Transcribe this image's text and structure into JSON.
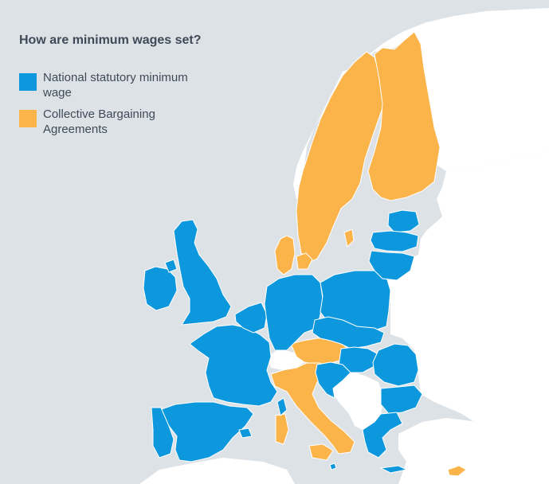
{
  "title": "How are minimum wages set?",
  "legend": [
    {
      "label": "National statutory minimum wage",
      "color": "#0d98dd"
    },
    {
      "label": "Collective Bargaining Agreements",
      "color": "#fbb44a"
    }
  ],
  "colors": {
    "sea": "#dde2e7",
    "land": "#ffffff",
    "border": "#ffffff",
    "text": "#3e4a57"
  },
  "countries": {
    "national_statutory_minimum_wage": [
      "Ireland",
      "United Kingdom",
      "France",
      "Spain",
      "Portugal",
      "Belgium",
      "Netherlands",
      "Luxembourg",
      "Germany",
      "Poland",
      "Czech Republic",
      "Slovakia",
      "Hungary",
      "Slovenia",
      "Croatia",
      "Romania",
      "Bulgaria",
      "Greece",
      "Estonia",
      "Latvia",
      "Lithuania",
      "Malta"
    ],
    "collective_bargaining_agreements": [
      "Sweden",
      "Finland",
      "Denmark",
      "Italy",
      "Austria",
      "Cyprus"
    ]
  }
}
